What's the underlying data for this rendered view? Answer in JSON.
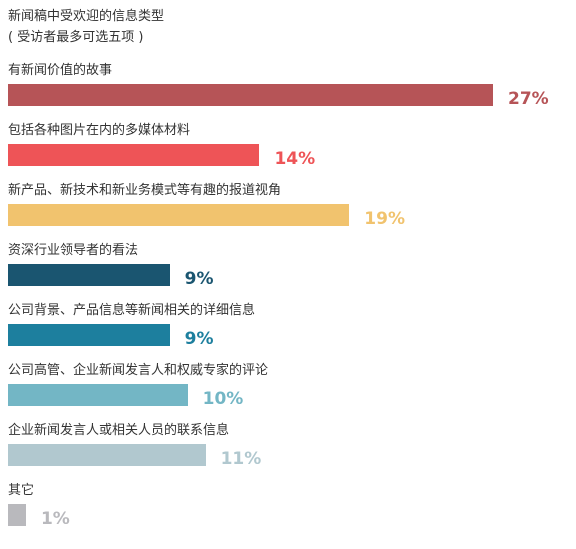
{
  "chart_data": {
    "type": "bar",
    "orientation": "horizontal",
    "title": "新闻稿中受欢迎的信息类型",
    "subtitle": "( 受访者最多可选五项 )",
    "categories": [
      "有新闻价值的故事",
      "包括各种图片在内的多媒体材料",
      "新产品、新技术和新业务模式等有趣的报道视角",
      "资深行业领导者的看法",
      "公司背景、产品信息等新闻相关的详细信息",
      "公司高管、企业新闻发言人和权威专家的评论",
      "企业新闻发言人或相关人员的联系信息",
      "其它"
    ],
    "values": [
      27,
      14,
      19,
      9,
      9,
      10,
      11,
      1
    ],
    "value_labels": [
      "27%",
      "14%",
      "19%",
      "9%",
      "9%",
      "10%",
      "11%",
      "1%"
    ],
    "colors": [
      "#b65457",
      "#ee5457",
      "#f1c36e",
      "#1a5570",
      "#1d7f9e",
      "#73b6c5",
      "#b1c8cf",
      "#b9b9bd"
    ],
    "xlim": [
      0,
      27
    ],
    "grid": false,
    "legend": "none"
  }
}
